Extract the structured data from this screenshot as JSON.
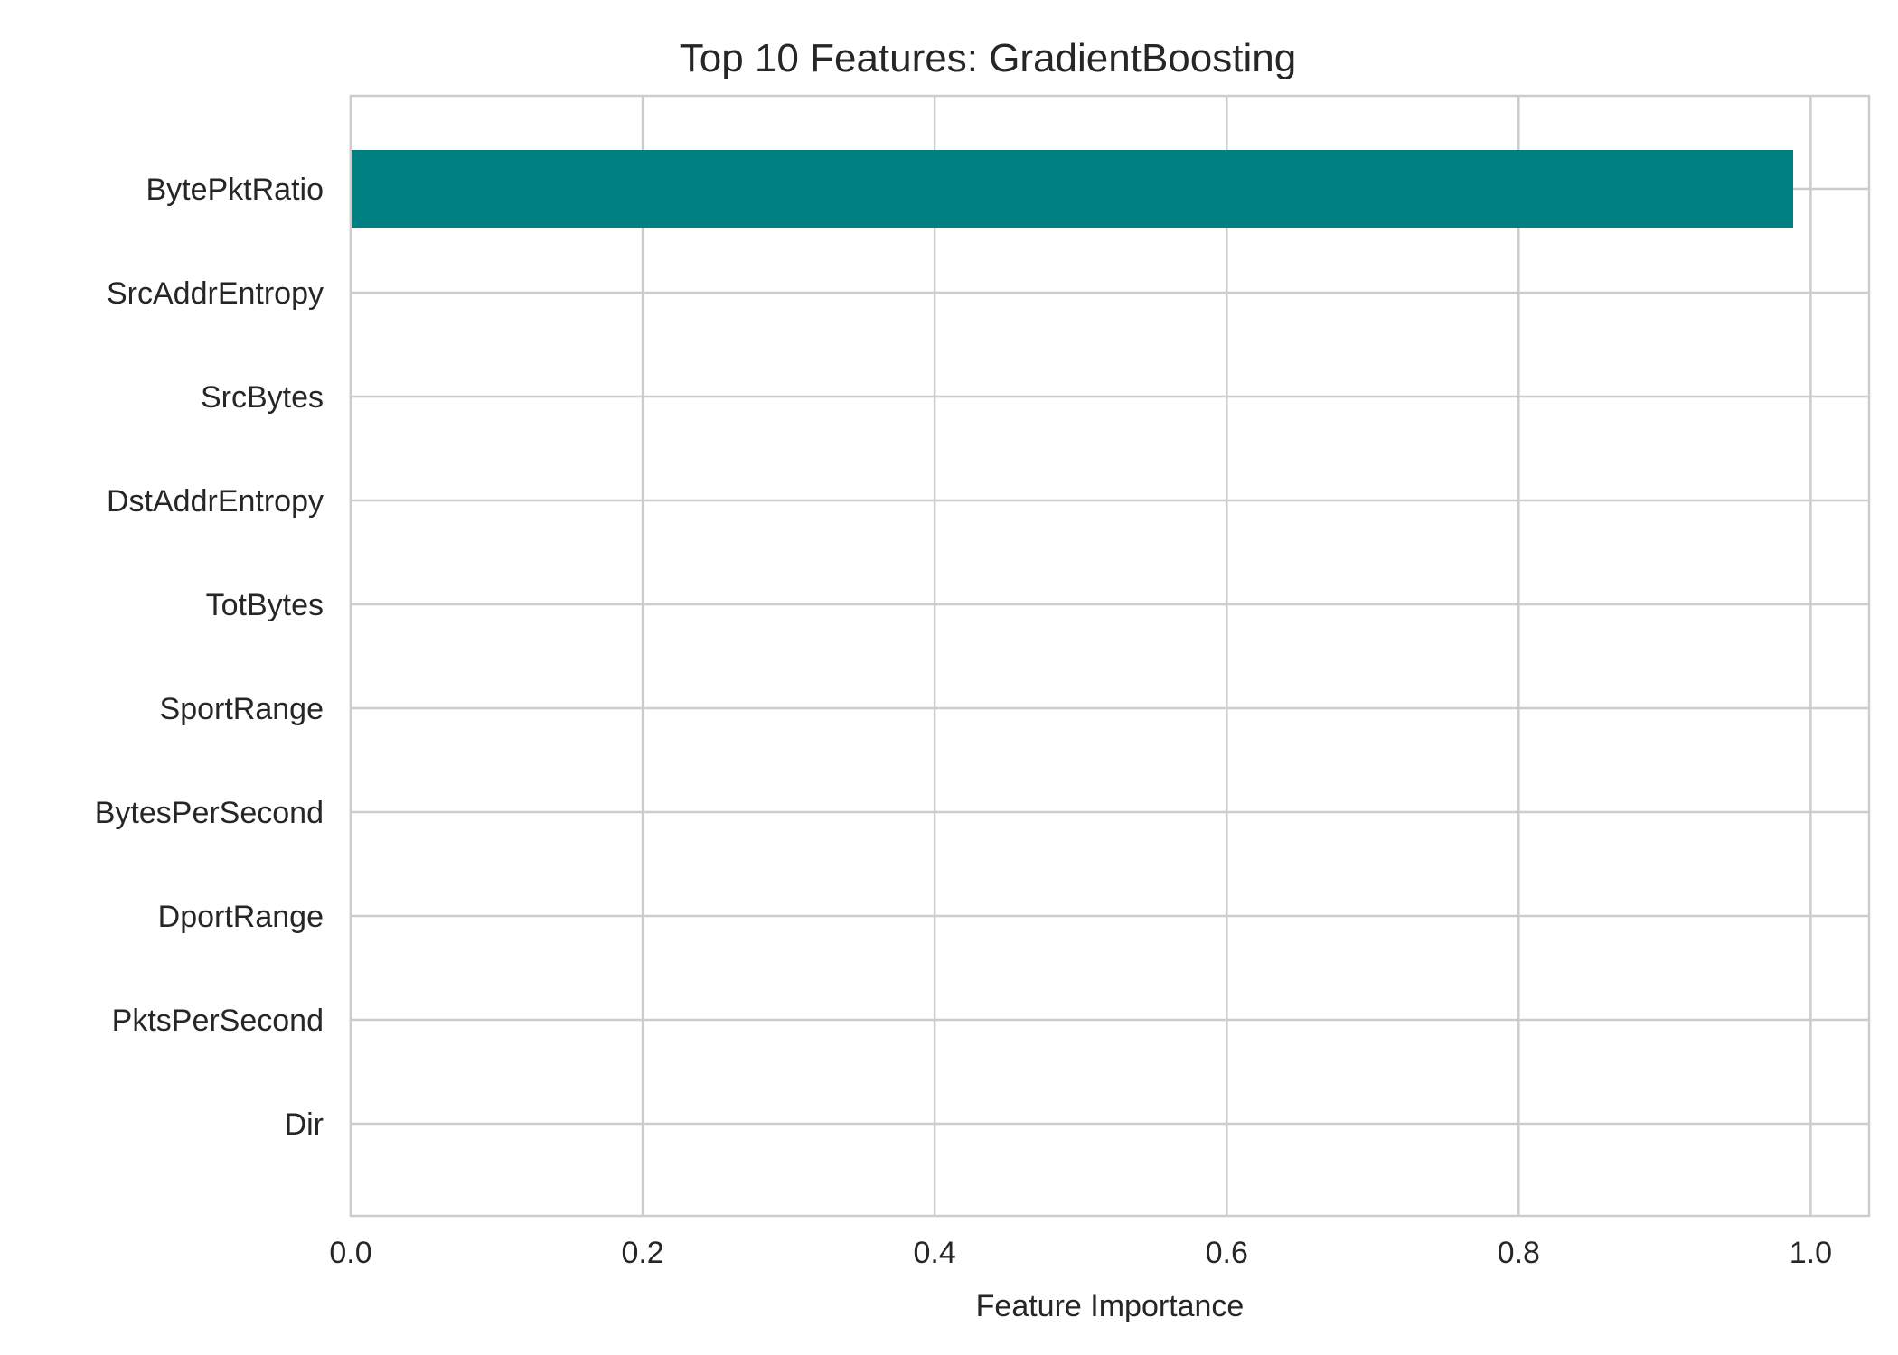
{
  "chart_data": {
    "type": "bar",
    "orientation": "horizontal",
    "title": "Top 10 Features: GradientBoosting",
    "xlabel": "Feature Importance",
    "ylabel": "",
    "categories": [
      "BytePktRatio",
      "SrcAddrEntropy",
      "SrcBytes",
      "DstAddrEntropy",
      "TotBytes",
      "SportRange",
      "BytesPerSecond",
      "DportRange",
      "PktsPerSecond",
      "Dir"
    ],
    "values": [
      0.988,
      0.0,
      0.0,
      0.0,
      0.0,
      0.0,
      0.0,
      0.0,
      0.0,
      0.0
    ],
    "xlim": [
      0.0,
      1.04
    ],
    "xticks": [
      0.0,
      0.2,
      0.4,
      0.6,
      0.8,
      1.0
    ],
    "xtick_labels": [
      "0.0",
      "0.2",
      "0.4",
      "0.6",
      "0.8",
      "1.0"
    ],
    "grid": true,
    "bar_color": "#008080"
  }
}
